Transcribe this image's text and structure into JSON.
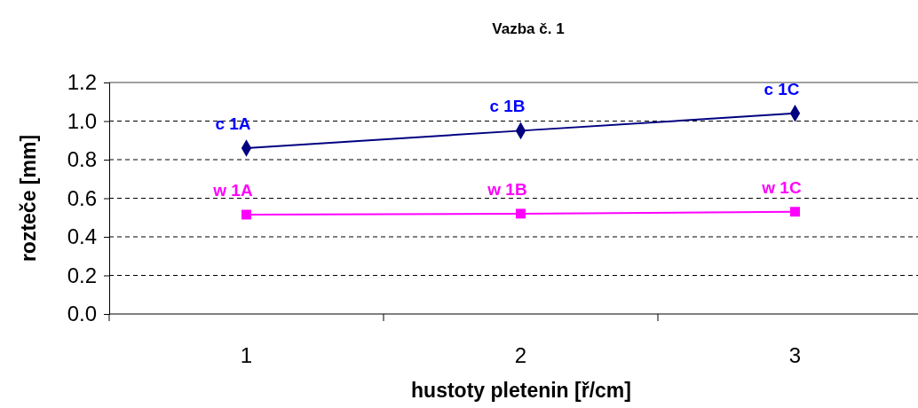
{
  "chart_data": {
    "type": "line",
    "title": "Vazba č. 1",
    "xlabel": "hustoty pletenin [ř/cm]",
    "ylabel": "rozteče [mm]",
    "categories": [
      "1",
      "2",
      "3"
    ],
    "series": [
      {
        "color": "#000080",
        "values": [
          0.86,
          0.95,
          1.04
        ],
        "marker": "diamond"
      },
      {
        "color": "#ff00ff",
        "values": [
          0.515,
          0.52,
          0.53
        ],
        "marker": "square"
      }
    ],
    "ylim": [
      0,
      1.2
    ],
    "yticks": [
      {
        "value": 0,
        "label": "0.0"
      },
      0.2,
      0.4,
      0.6,
      0.8,
      {
        "value": 1,
        "label": "1.0"
      },
      1.2
    ],
    "grid": "y",
    "annotations": [
      {
        "text": "c 1A",
        "x": "1",
        "y": 0.86
      },
      {
        "text": "c 1B",
        "x": "2",
        "y": 0.95
      },
      {
        "text": "c 1C",
        "x": "3",
        "y": 1.04
      },
      {
        "text": "w 1A",
        "x": "1",
        "y": 0.515
      },
      {
        "text": "w 1B",
        "x": "2",
        "y": 0.52
      },
      {
        "text": "w 1C",
        "x": "3",
        "y": 0.53
      }
    ]
  }
}
